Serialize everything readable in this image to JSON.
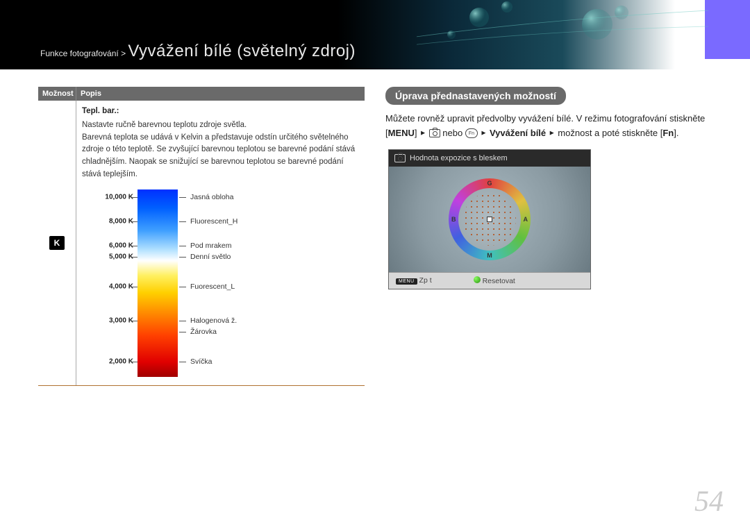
{
  "breadcrumb": {
    "prefix": "Funkce fotografování >",
    "title": "Vyvážení  bílé (světelný zdroj)"
  },
  "table": {
    "header_option": "Možnost",
    "header_desc": "Popis",
    "option_icon_text": "K",
    "subtitle": "Tepl. bar.:",
    "line1": "Nastavte ručně barevnou teplotu zdroje světla.",
    "line2": "Barevná teplota se udává v Kelvin a představuje odstín určitého světelného zdroje o této teplotě. Se zvyšující barevnou teplotou se barevné podání stává chladnějším. Naopak se snižující se barevnou teplotou se barevné podání stává teplejším."
  },
  "kelvin": {
    "ticks": [
      {
        "label": "10,000 K",
        "pos_pct": 4,
        "desc": "Jasná obloha"
      },
      {
        "label": "8,000 K",
        "pos_pct": 17,
        "desc": "Fluorescent_H"
      },
      {
        "label": "6,000 K",
        "pos_pct": 30,
        "desc": "Pod mrakem"
      },
      {
        "label": "5,000 K",
        "pos_pct": 36,
        "desc": "Denní světlo"
      },
      {
        "label": "4,000 K",
        "pos_pct": 52,
        "desc": "Fuorescent_L"
      },
      {
        "label": "3,000 K",
        "pos_pct": 70,
        "desc": "Halogenová ž."
      },
      {
        "label": "2,000 K",
        "pos_pct": 92,
        "desc": "Svíčka"
      }
    ],
    "extra_right": {
      "pos_pct": 76,
      "desc": "Žárovka"
    },
    "gradient_stops": [
      "#0030ff 0%",
      "#0060ff 10%",
      "#40a0ff 22%",
      "#b0e0ff 32%",
      "#ffffff 38%",
      "#fff060 46%",
      "#ffd000 55%",
      "#ff9000 65%",
      "#ff4000 78%",
      "#e00000 92%",
      "#a00000 100%"
    ]
  },
  "right": {
    "section_title": "Úprava přednastavených možností",
    "p1_a": "Můžete rovněž upravit předvolby vyvážení bílé. V režimu fotografování stiskněte [",
    "p1_menu": "MENU",
    "p1_b": "] ",
    "p1_nebo": " nebo ",
    "p1_wb": "Vyvážení bílé",
    "p1_c": " možnost a poté stiskněte [",
    "p1_fn": "Fn",
    "p1_d": "]."
  },
  "preview": {
    "top_label": "Hodnota expozice s bleskem",
    "ring_letters": {
      "top": "G",
      "right": "A",
      "bottom": "M",
      "left": "B"
    },
    "bottom_back": "Zp t",
    "bottom_reset": "Resetovat",
    "menu_badge": "MENU"
  },
  "page_number": "54",
  "colors": {
    "header_bg": "#6a6a6a",
    "rule": "#b07030",
    "purple_block": "#7a6aff"
  }
}
